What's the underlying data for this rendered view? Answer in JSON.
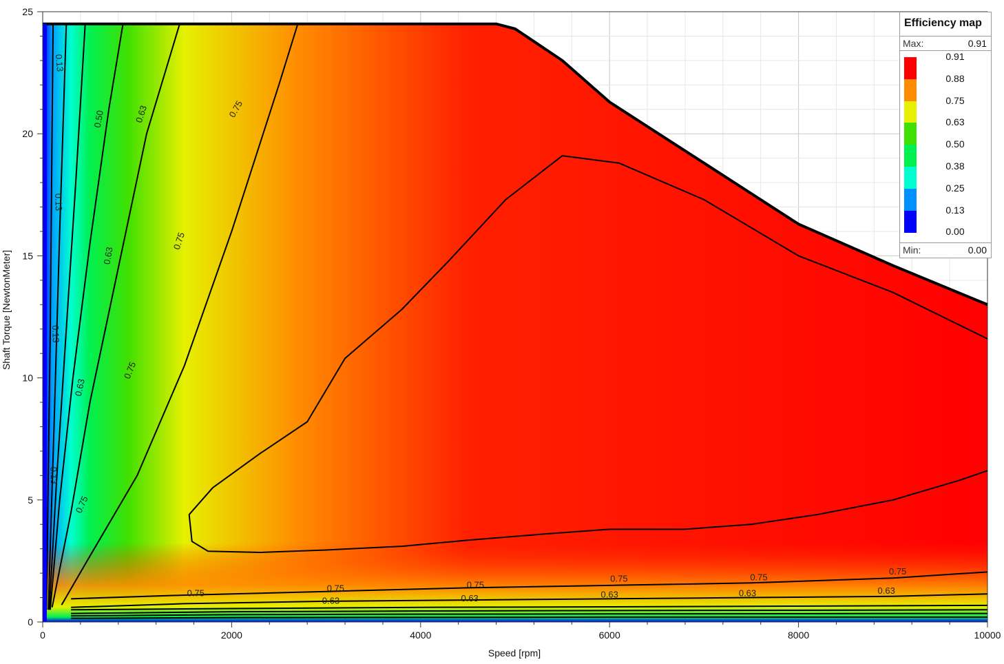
{
  "chart_data": {
    "type": "heatmap",
    "title": "",
    "xlabel": "Speed [rpm]",
    "ylabel": "Shaft Torque [NewtonMeter]",
    "xlim": [
      0,
      10000
    ],
    "ylim": [
      0,
      25
    ],
    "x_ticks": [
      "0",
      "2000",
      "4000",
      "6000",
      "8000",
      "10000"
    ],
    "y_ticks": [
      "0",
      "5",
      "10",
      "15",
      "20",
      "25"
    ],
    "grid": true,
    "legend": {
      "title": "Efficiency map",
      "max_label": "Max:",
      "max_value": "0.91",
      "min_label": "Min:",
      "min_value": "0.00",
      "placement": "top-right",
      "levels": [
        {
          "value": "0.91",
          "color": "#ff0000"
        },
        {
          "value": "0.88",
          "color": "#ff8c00"
        },
        {
          "value": "0.75",
          "color": "#e6f000"
        },
        {
          "value": "0.63",
          "color": "#40e000"
        },
        {
          "value": "0.50",
          "color": "#00f050"
        },
        {
          "value": "0.38",
          "color": "#00ffd0"
        },
        {
          "value": "0.25",
          "color": "#0090ff"
        },
        {
          "value": "0.13",
          "color": "#0000ff"
        },
        {
          "value": "0.00",
          "color": "#0000ff"
        }
      ]
    },
    "torque_envelope": {
      "speed": [
        0,
        4800,
        5000,
        5500,
        6000,
        7000,
        8000,
        9000,
        10000
      ],
      "torque": [
        24.5,
        24.5,
        24.3,
        23.0,
        21.3,
        18.8,
        16.3,
        14.6,
        13.0
      ]
    },
    "contours": [
      {
        "level": "0.91",
        "speed": [
          1550,
          1580,
          1750,
          2300,
          3000,
          3800,
          4500,
          5300,
          6000,
          6800,
          7500,
          8200,
          9000,
          9700,
          10000
        ],
        "torque": [
          4.4,
          3.3,
          2.9,
          2.85,
          2.95,
          3.1,
          3.35,
          3.6,
          3.8,
          3.8,
          4.0,
          4.4,
          5.0,
          5.8,
          6.2
        ]
      },
      {
        "level": "0.91",
        "speed": [
          1550,
          1800,
          2300,
          2800,
          3200,
          3800,
          4300,
          4900,
          5500,
          6100,
          7000,
          8000,
          9000,
          10000
        ],
        "torque": [
          4.4,
          5.5,
          6.9,
          8.2,
          10.8,
          12.8,
          14.8,
          17.3,
          19.1,
          18.8,
          17.3,
          15.0,
          13.5,
          11.6
        ]
      },
      {
        "level": "0.75",
        "speed": [
          200,
          500,
          1000,
          1500,
          2000,
          2500,
          2700
        ],
        "torque": [
          0.7,
          2.7,
          6.0,
          10.5,
          16.0,
          22.0,
          24.5
        ]
      },
      {
        "level": "0.63",
        "speed": [
          100,
          300,
          500,
          800,
          1100,
          1450
        ],
        "torque": [
          0.6,
          4.5,
          9.0,
          14.5,
          20.0,
          24.5
        ]
      },
      {
        "level": "0.50",
        "speed": [
          80,
          180,
          320,
          500,
          700,
          850
        ],
        "torque": [
          0.5,
          5.0,
          10.0,
          15.5,
          21.0,
          24.5
        ]
      },
      {
        "level": "0.38",
        "speed": [
          70,
          150,
          250,
          350,
          450
        ],
        "torque": [
          0.5,
          6.0,
          12.0,
          18.0,
          24.5
        ]
      },
      {
        "level": "0.25",
        "speed": [
          60,
          120,
          180,
          250
        ],
        "torque": [
          0.5,
          8.0,
          16.0,
          24.5
        ]
      },
      {
        "level": "0.13",
        "speed": [
          40,
          80,
          110
        ],
        "torque": [
          0.5,
          12.0,
          24.5
        ]
      },
      {
        "level": "0.75",
        "speed": [
          300,
          1500,
          3000,
          4500,
          6000,
          7500,
          9000,
          10000
        ],
        "torque": [
          0.95,
          1.1,
          1.25,
          1.4,
          1.5,
          1.6,
          1.8,
          2.05
        ]
      },
      {
        "level": "0.63",
        "speed": [
          300,
          1500,
          3000,
          4500,
          6000,
          7500,
          9000,
          10000
        ],
        "torque": [
          0.6,
          0.75,
          0.85,
          0.9,
          0.95,
          1.0,
          1.05,
          1.15
        ]
      },
      {
        "level": "0.50",
        "speed": [
          300,
          2000,
          4000,
          6000,
          8000,
          10000
        ],
        "torque": [
          0.5,
          0.55,
          0.6,
          0.62,
          0.65,
          0.68
        ]
      },
      {
        "level": "0.38",
        "speed": [
          300,
          2000,
          4000,
          6000,
          8000,
          10000
        ],
        "torque": [
          0.35,
          0.42,
          0.45,
          0.47,
          0.48,
          0.5
        ]
      },
      {
        "level": "0.25",
        "speed": [
          300,
          2000,
          4000,
          6000,
          8000,
          10000
        ],
        "torque": [
          0.25,
          0.3,
          0.32,
          0.33,
          0.34,
          0.35
        ]
      },
      {
        "level": "0.13",
        "speed": [
          300,
          2000,
          4000,
          6000,
          8000,
          10000
        ],
        "torque": [
          0.15,
          0.18,
          0.19,
          0.2,
          0.2,
          0.2
        ]
      }
    ],
    "contour_labels": [
      {
        "text": "0.75",
        "speed": 2050,
        "torque": 21.0,
        "angle": -60
      },
      {
        "text": "0.63",
        "speed": 1050,
        "torque": 20.8,
        "angle": -72
      },
      {
        "text": "0.50",
        "speed": 600,
        "torque": 20.6,
        "angle": -80
      },
      {
        "text": "0.13",
        "speed": 170,
        "torque": 22.9,
        "angle": 85
      },
      {
        "text": "0.75",
        "speed": 1450,
        "torque": 15.6,
        "angle": -72
      },
      {
        "text": "0.63",
        "speed": 700,
        "torque": 15.0,
        "angle": -80
      },
      {
        "text": "0.13",
        "speed": 160,
        "torque": 17.2,
        "angle": 88
      },
      {
        "text": "0.75",
        "speed": 930,
        "torque": 10.3,
        "angle": -68
      },
      {
        "text": "0.63",
        "speed": 400,
        "torque": 9.6,
        "angle": -78
      },
      {
        "text": "0.13",
        "speed": 130,
        "torque": 11.8,
        "angle": 88
      },
      {
        "text": "0.13",
        "speed": 110,
        "torque": 6.0,
        "angle": 88
      },
      {
        "text": "0.75",
        "speed": 420,
        "torque": 4.8,
        "angle": -66
      },
      {
        "text": "0.75",
        "speed": 1620,
        "torque": 1.15,
        "angle": 0
      },
      {
        "text": "0.75",
        "speed": 3100,
        "torque": 1.35,
        "angle": 0
      },
      {
        "text": "0.75",
        "speed": 4580,
        "torque": 1.5,
        "angle": 0
      },
      {
        "text": "0.75",
        "speed": 6100,
        "torque": 1.75,
        "angle": 0
      },
      {
        "text": "0.75",
        "speed": 7580,
        "torque": 1.8,
        "angle": 0
      },
      {
        "text": "0.75",
        "speed": 9050,
        "torque": 2.05,
        "angle": 0
      },
      {
        "text": "0.63",
        "speed": 3050,
        "torque": 0.85,
        "angle": 0
      },
      {
        "text": "0.63",
        "speed": 4520,
        "torque": 0.95,
        "angle": 0
      },
      {
        "text": "0.63",
        "speed": 6000,
        "torque": 1.1,
        "angle": 0
      },
      {
        "text": "0.63",
        "speed": 7460,
        "torque": 1.15,
        "angle": 0
      },
      {
        "text": "0.63",
        "speed": 8930,
        "torque": 1.25,
        "angle": 0
      }
    ]
  }
}
